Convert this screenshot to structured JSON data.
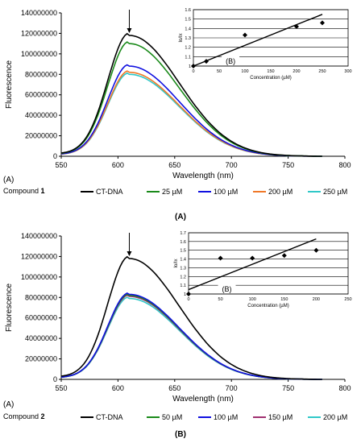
{
  "chart_data": [
    {
      "type": "line",
      "panel_label": "(A)",
      "compound_prefix": "Compound ",
      "compound_number": "1",
      "caption": "(A)",
      "xlabel": "Wavelength (nm)",
      "ylabel": "Fluorescence",
      "xlim": [
        550,
        800
      ],
      "ylim": [
        0,
        140000000
      ],
      "x_ticks": [
        "550",
        "600",
        "650",
        "700",
        "750",
        "800"
      ],
      "y_ticks": [
        "0",
        "20000000",
        "40000000",
        "60000000",
        "80000000",
        "100000000",
        "120000000",
        "140000000"
      ],
      "grid": false,
      "legend_position": "bottom",
      "series": [
        {
          "name": "CT-DNA",
          "color": "#000000",
          "peak": 118000000
        },
        {
          "name": "25 µM",
          "color": "#1a8a1a",
          "peak": 110000000
        },
        {
          "name": "100 µM",
          "color": "#1010e0",
          "peak": 88000000
        },
        {
          "name": "200 µM",
          "color": "#f07828",
          "peak": 82000000
        },
        {
          "name": "250 µM",
          "color": "#30c8c8",
          "peak": 80000000
        }
      ],
      "peak_x": 610,
      "inset": {
        "type": "scatter",
        "panel_label": "(B)",
        "xlabel": "Concentration (µM)",
        "ylabel": "Io/Ix",
        "xlim": [
          0,
          300
        ],
        "ylim": [
          1,
          1.6
        ],
        "x_ticks": [
          "0",
          "50",
          "100",
          "150",
          "200",
          "250",
          "300"
        ],
        "y_ticks": [
          "1",
          "1.1",
          "1.2",
          "1.3",
          "1.4",
          "1.5",
          "1.6"
        ],
        "grid": true,
        "points": [
          {
            "x": 0,
            "y": 1.0
          },
          {
            "x": 25,
            "y": 1.05
          },
          {
            "x": 100,
            "y": 1.33
          },
          {
            "x": 200,
            "y": 1.42
          },
          {
            "x": 250,
            "y": 1.46
          }
        ],
        "fit": {
          "x": [
            0,
            250
          ],
          "y": [
            1.0,
            1.55
          ]
        }
      }
    },
    {
      "type": "line",
      "panel_label": "(A)",
      "compound_prefix": "Compound ",
      "compound_number": "2",
      "caption": "(B)",
      "xlabel": "Wavelength (nm)",
      "ylabel": "Fluorescence",
      "xlim": [
        550,
        800
      ],
      "ylim": [
        0,
        140000000
      ],
      "x_ticks": [
        "550",
        "600",
        "650",
        "700",
        "750",
        "800"
      ],
      "y_ticks": [
        "0",
        "20000000",
        "40000000",
        "60000000",
        "80000000",
        "100000000",
        "120000000",
        "140000000"
      ],
      "grid": false,
      "legend_position": "bottom",
      "series": [
        {
          "name": "CT-DNA",
          "color": "#000000",
          "peak": 118000000
        },
        {
          "name": "50 µM",
          "color": "#1a8a1a",
          "peak": 82000000
        },
        {
          "name": "100 µM",
          "color": "#1010e0",
          "peak": 83000000
        },
        {
          "name": "150 µM",
          "color": "#a03070",
          "peak": 81000000
        },
        {
          "name": "200 µM",
          "color": "#30c8c8",
          "peak": 79000000
        }
      ],
      "peak_x": 610,
      "inset": {
        "type": "scatter",
        "panel_label": "(B)",
        "xlabel": "Concentration (µM)",
        "ylabel": "Io/Ix",
        "xlim": [
          0,
          250
        ],
        "ylim": [
          1,
          1.7
        ],
        "x_ticks": [
          "0",
          "50",
          "100",
          "150",
          "200",
          "250"
        ],
        "y_ticks": [
          "1",
          "1.1",
          "1.2",
          "1.3",
          "1.4",
          "1.5",
          "1.6",
          "1.7"
        ],
        "grid": true,
        "points": [
          {
            "x": 0,
            "y": 1.0
          },
          {
            "x": 50,
            "y": 1.41
          },
          {
            "x": 100,
            "y": 1.41
          },
          {
            "x": 150,
            "y": 1.44
          },
          {
            "x": 200,
            "y": 1.5
          }
        ],
        "fit": {
          "x": [
            0,
            200
          ],
          "y": [
            1.05,
            1.63
          ]
        }
      }
    }
  ]
}
